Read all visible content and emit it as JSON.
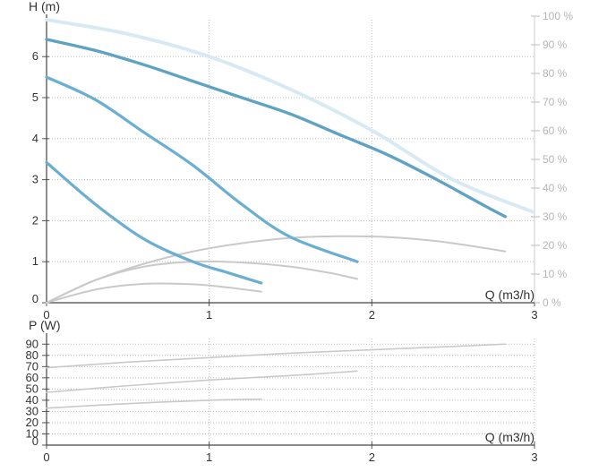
{
  "chart_data": [
    {
      "type": "line",
      "xlabel": "Q (m3/h)",
      "ylabel": "H (m)",
      "y2label": "",
      "xlim": [
        0,
        3
      ],
      "ylim": [
        0,
        6.9
      ],
      "y2lim": [
        0,
        100
      ],
      "grid": true,
      "x_ticks": [
        "0",
        "1",
        "2",
        "3"
      ],
      "y_ticks": [
        "0",
        "1",
        "2",
        "3",
        "4",
        "5",
        "6"
      ],
      "y2_ticks": [
        "0 %",
        "10 %",
        "20 %",
        "30 %",
        "40 %",
        "50 %",
        "60 %",
        "70 %",
        "80 %",
        "90 %",
        "100 %"
      ],
      "colors": {
        "head": "#6aaed1",
        "head_max": "#5fa3c4",
        "efficiency": "#c9c9c9",
        "efficiency_limit": "#d7e9f3",
        "grid": "#bdbdbd"
      },
      "series": [
        {
          "role": "head",
          "x": [
            0,
            0.3,
            0.6,
            0.9,
            1.2,
            1.5,
            1.8,
            2.1,
            2.4,
            2.7,
            2.82
          ],
          "y": [
            6.42,
            6.15,
            5.8,
            5.4,
            5.0,
            4.6,
            4.1,
            3.6,
            3.0,
            2.35,
            2.1
          ]
        },
        {
          "role": "head",
          "x": [
            0,
            0.3,
            0.6,
            0.9,
            1.2,
            1.5,
            1.91
          ],
          "y": [
            5.5,
            4.95,
            4.15,
            3.35,
            2.4,
            1.6,
            1.0
          ]
        },
        {
          "role": "head",
          "x": [
            0,
            0.3,
            0.6,
            0.9,
            1.1,
            1.32
          ],
          "y": [
            3.42,
            2.4,
            1.55,
            1.0,
            0.75,
            0.48
          ]
        },
        {
          "role": "efficiency",
          "x": [
            0,
            0.3,
            0.6,
            0.9,
            1.2,
            1.5,
            1.8,
            2.1,
            2.4,
            2.7,
            2.82
          ],
          "y": [
            0,
            0.55,
            0.95,
            1.25,
            1.45,
            1.58,
            1.62,
            1.6,
            1.5,
            1.33,
            1.25
          ]
        },
        {
          "role": "efficiency",
          "x": [
            0,
            0.3,
            0.6,
            0.9,
            1.2,
            1.5,
            1.75,
            1.91
          ],
          "y": [
            0,
            0.55,
            0.88,
            1.0,
            0.98,
            0.88,
            0.72,
            0.58
          ]
        },
        {
          "role": "efficiency",
          "x": [
            0,
            0.3,
            0.6,
            0.9,
            1.1,
            1.32
          ],
          "y": [
            0,
            0.32,
            0.46,
            0.45,
            0.38,
            0.27
          ]
        },
        {
          "role": "efficiency_limit",
          "x": [
            0,
            0.5,
            1.0,
            1.5,
            2.0,
            2.5,
            3.0
          ],
          "y": [
            6.9,
            6.55,
            6.0,
            5.2,
            4.2,
            3.0,
            2.2
          ]
        }
      ]
    },
    {
      "type": "line",
      "xlabel": "Q (m3/h)",
      "ylabel": "P (W)",
      "xlim": [
        0,
        3
      ],
      "ylim": [
        0,
        95
      ],
      "grid": true,
      "x_ticks": [
        "0",
        "1",
        "2",
        "3"
      ],
      "y_ticks": [
        "0",
        "10",
        "20",
        "30",
        "40",
        "50",
        "60",
        "70",
        "80",
        "90"
      ],
      "colors": {
        "power": "#c9c9c9",
        "grid": "#bdbdbd"
      },
      "series": [
        {
          "role": "power",
          "x": [
            0,
            0.5,
            1.0,
            1.5,
            2.0,
            2.5,
            2.82
          ],
          "y": [
            69,
            74,
            78,
            82,
            85,
            88,
            90
          ]
        },
        {
          "role": "power",
          "x": [
            0,
            0.5,
            1.0,
            1.5,
            1.91
          ],
          "y": [
            47,
            53,
            58,
            62,
            66
          ]
        },
        {
          "role": "power",
          "x": [
            0,
            0.5,
            1.0,
            1.32
          ],
          "y": [
            33,
            37,
            40,
            41
          ]
        }
      ]
    }
  ]
}
